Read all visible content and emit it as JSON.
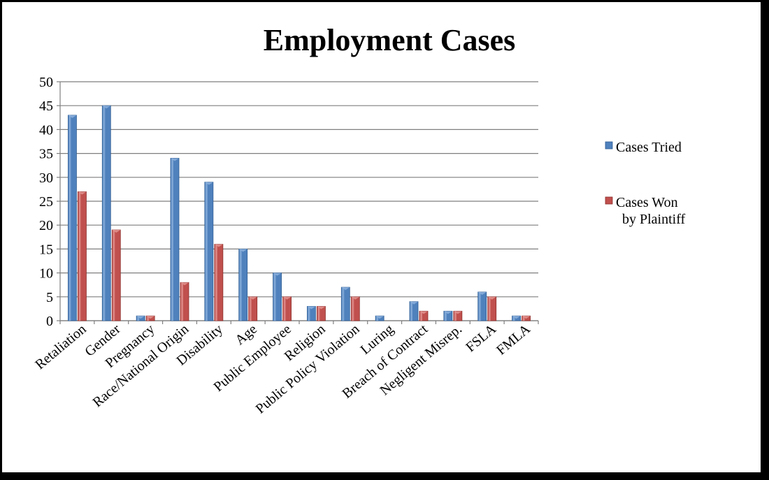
{
  "chart_data": {
    "type": "bar",
    "title": "Employment Cases",
    "categories": [
      "Retaliation",
      "Gender",
      "Pregnancy",
      "Race/National Origin",
      "Disability",
      "Age",
      "Public Employee",
      "Religion",
      "Public Policy Violation",
      "Luring",
      "Breach of Contract",
      "Negligent Misrep.",
      "FSLA",
      "FMLA"
    ],
    "series": [
      {
        "name": "Cases Tried",
        "values": [
          43,
          45,
          1,
          34,
          29,
          15,
          10,
          3,
          7,
          1,
          4,
          2,
          6,
          1
        ],
        "color": "#4F81BD"
      },
      {
        "name": "Cases Won by Plaintiff",
        "values": [
          27,
          19,
          1,
          8,
          16,
          5,
          5,
          3,
          5,
          0,
          2,
          2,
          5,
          1
        ],
        "color": "#C0504D"
      }
    ],
    "ylim": [
      0,
      50
    ],
    "yticks": [
      0,
      5,
      10,
      15,
      20,
      25,
      30,
      35,
      40,
      45,
      50
    ],
    "grid": true,
    "legend_position": "right",
    "legend_lines": [
      [
        "Cases Tried"
      ],
      [
        "Cases Won",
        "by Plaintiff"
      ]
    ]
  }
}
